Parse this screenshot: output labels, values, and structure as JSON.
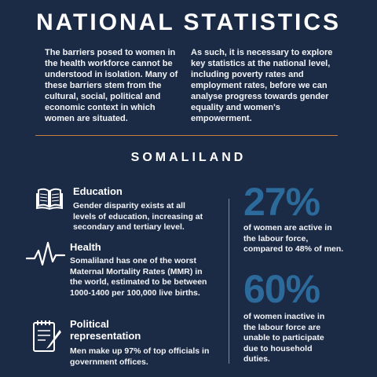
{
  "header": {
    "title": "NATIONAL STATISTICS",
    "intro_left": "The barriers posed to women in the health workforce cannot be understood in isolation. Many of these barriers stem from the cultural, social, political and economic context in which women are situated.",
    "intro_right": "As such, it is necessary to explore key statistics at the national level, including poverty rates and employment rates, before we can analyse progress towards gender equality and women's empowerment."
  },
  "section": {
    "title": "SOMALILAND"
  },
  "items": [
    {
      "icon": "book-icon",
      "title": "Education",
      "body": "Gender disparity exists at all levels of education, increasing at secondary and tertiary level."
    },
    {
      "icon": "heartbeat-icon",
      "title": "Health",
      "body": "Somaliland has one of the worst Maternal Mortality Rates (MMR) in the world, estimated to be between 1000-1400 per 100,000 live births."
    },
    {
      "icon": "clipboard-pen-icon",
      "title": "Political representation",
      "body": "Men make up 97% of top officials in government offices."
    }
  ],
  "stats": [
    {
      "value": "27%",
      "text": "of women are active in the labour force, compared to 48% of men."
    },
    {
      "value": "60%",
      "text": "of women inactive in the labour force are unable to participate due to household duties."
    }
  ],
  "colors": {
    "background": "#1b2a45",
    "accent_line": "#c87d3c",
    "stat_blue": "#2b6a9a",
    "text": "#ffffff"
  }
}
